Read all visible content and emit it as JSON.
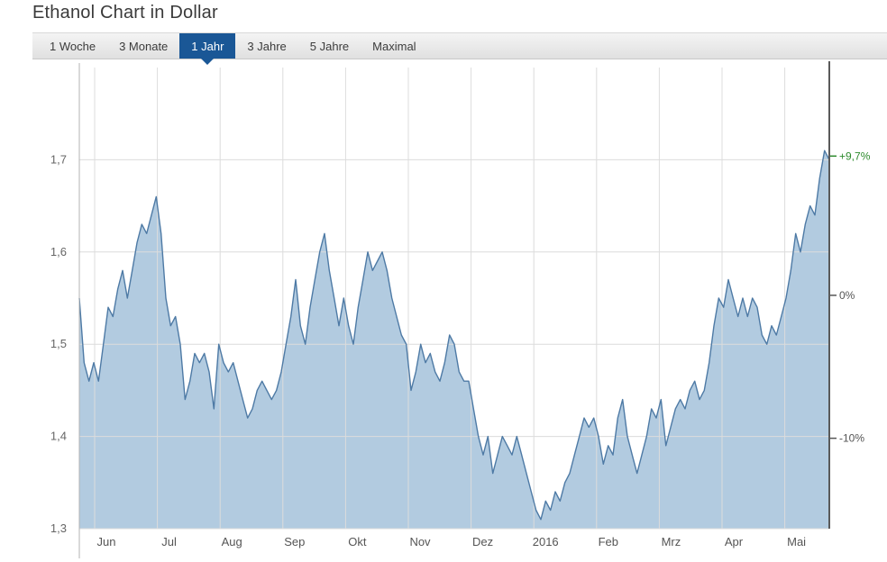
{
  "page": {
    "title": "Ethanol Chart in Dollar"
  },
  "tabbar": {
    "tabs": [
      {
        "label": "1 Woche",
        "active": false
      },
      {
        "label": "3 Monate",
        "active": false
      },
      {
        "label": "1 Jahr",
        "active": true
      },
      {
        "label": "3 Jahre",
        "active": false
      },
      {
        "label": "5 Jahre",
        "active": false
      },
      {
        "label": "Maximal",
        "active": false
      }
    ]
  },
  "chart_data": {
    "type": "area",
    "title": "Ethanol Chart in Dollar",
    "unit": "USD",
    "xlabel": "",
    "ylabel": "",
    "ylim": [
      1.3,
      1.8
    ],
    "grid": true,
    "x_tick_labels": [
      "Jun",
      "Jul",
      "Aug",
      "Sep",
      "Okt",
      "Nov",
      "Dez",
      "2016",
      "Feb",
      "Mrz",
      "Apr",
      "Mai"
    ],
    "y_ticks": [
      1.3,
      1.4,
      1.5,
      1.6,
      1.7
    ],
    "y_tick_labels": [
      "1,3",
      "1,4",
      "1,5",
      "1,6",
      "1,7"
    ],
    "right_axis": [
      {
        "label": "+9,7%",
        "value": 1.704,
        "color": "#2e8b2e"
      },
      {
        "label": "0%",
        "value": 1.553,
        "color": "#555555"
      },
      {
        "label": "-10%",
        "value": 1.398,
        "color": "#555555"
      }
    ],
    "series": [
      {
        "name": "Ethanol",
        "values": [
          1.55,
          1.48,
          1.46,
          1.48,
          1.46,
          1.5,
          1.54,
          1.53,
          1.56,
          1.58,
          1.55,
          1.58,
          1.61,
          1.63,
          1.62,
          1.64,
          1.66,
          1.62,
          1.55,
          1.52,
          1.53,
          1.5,
          1.44,
          1.46,
          1.49,
          1.48,
          1.49,
          1.47,
          1.43,
          1.5,
          1.48,
          1.47,
          1.48,
          1.46,
          1.44,
          1.42,
          1.43,
          1.45,
          1.46,
          1.45,
          1.44,
          1.45,
          1.47,
          1.5,
          1.53,
          1.57,
          1.52,
          1.5,
          1.54,
          1.57,
          1.6,
          1.62,
          1.58,
          1.55,
          1.52,
          1.55,
          1.52,
          1.5,
          1.54,
          1.57,
          1.6,
          1.58,
          1.59,
          1.6,
          1.58,
          1.55,
          1.53,
          1.51,
          1.5,
          1.45,
          1.47,
          1.5,
          1.48,
          1.49,
          1.47,
          1.46,
          1.48,
          1.51,
          1.5,
          1.47,
          1.46,
          1.46,
          1.43,
          1.4,
          1.38,
          1.4,
          1.36,
          1.38,
          1.4,
          1.39,
          1.38,
          1.4,
          1.38,
          1.36,
          1.34,
          1.32,
          1.31,
          1.33,
          1.32,
          1.34,
          1.33,
          1.35,
          1.36,
          1.38,
          1.4,
          1.42,
          1.41,
          1.42,
          1.4,
          1.37,
          1.39,
          1.38,
          1.42,
          1.44,
          1.4,
          1.38,
          1.36,
          1.38,
          1.4,
          1.43,
          1.42,
          1.44,
          1.39,
          1.41,
          1.43,
          1.44,
          1.43,
          1.45,
          1.46,
          1.44,
          1.45,
          1.48,
          1.52,
          1.55,
          1.54,
          1.57,
          1.55,
          1.53,
          1.55,
          1.53,
          1.55,
          1.54,
          1.51,
          1.5,
          1.52,
          1.51,
          1.53,
          1.55,
          1.58,
          1.62,
          1.6,
          1.63,
          1.65,
          1.64,
          1.68,
          1.71,
          1.7
        ]
      }
    ],
    "colors": {
      "area_fill": "#b2cbe0",
      "line": "#4e7aa5",
      "grid": "#dcdcdc",
      "axis": "#b3b3b3",
      "right_axis_line": "#5a5a5a",
      "tick_text": "#666666",
      "x_text": "#555555"
    }
  }
}
